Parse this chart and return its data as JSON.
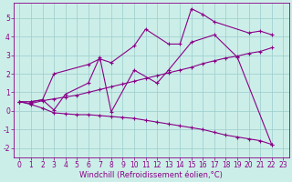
{
  "xlabel": "Windchill (Refroidissement éolien,°C)",
  "bg_color": "#cceee8",
  "line_color": "#880088",
  "grid_color": "#99cccc",
  "xlim": [
    -0.5,
    23.5
  ],
  "ylim": [
    -2.5,
    5.8
  ],
  "xticks": [
    0,
    1,
    2,
    3,
    4,
    5,
    6,
    7,
    8,
    9,
    10,
    11,
    12,
    13,
    14,
    15,
    16,
    17,
    18,
    19,
    20,
    21,
    22,
    23
  ],
  "yticks": [
    -2,
    -1,
    0,
    1,
    2,
    3,
    4,
    5
  ],
  "series1_x": [
    1,
    2,
    3,
    6,
    7,
    8,
    10,
    11,
    13,
    14,
    15,
    16,
    17,
    20,
    21,
    22
  ],
  "series1_y": [
    0.5,
    0.6,
    2.0,
    2.5,
    2.8,
    2.6,
    3.5,
    4.4,
    3.6,
    3.6,
    5.5,
    5.2,
    4.8,
    4.2,
    4.3,
    4.1
  ],
  "series2_x": [
    0,
    1,
    2,
    3,
    4,
    6,
    7,
    8,
    10,
    12,
    13,
    15,
    17,
    19,
    22
  ],
  "series2_y": [
    0.5,
    0.5,
    0.6,
    0.05,
    0.9,
    1.5,
    2.9,
    -0.05,
    2.2,
    1.5,
    2.2,
    3.7,
    4.1,
    2.9,
    -1.8
  ],
  "series3_x": [
    0,
    1,
    2,
    3,
    4,
    5,
    6,
    7,
    8,
    9,
    10,
    11,
    12,
    13,
    14,
    15,
    16,
    17,
    18,
    19,
    20,
    21,
    22
  ],
  "series3_y": [
    0.5,
    0.4,
    0.55,
    0.65,
    0.75,
    0.85,
    1.0,
    1.15,
    1.3,
    1.45,
    1.6,
    1.75,
    1.9,
    2.05,
    2.2,
    2.35,
    2.55,
    2.7,
    2.85,
    2.95,
    3.1,
    3.2,
    3.4
  ],
  "series4_x": [
    0,
    1,
    2,
    3,
    4,
    5,
    6,
    7,
    8,
    9,
    10,
    11,
    12,
    13,
    14,
    15,
    16,
    17,
    18,
    19,
    20,
    21,
    22
  ],
  "series4_y": [
    0.5,
    0.35,
    0.15,
    -0.1,
    -0.15,
    -0.2,
    -0.2,
    -0.25,
    -0.3,
    -0.35,
    -0.4,
    -0.5,
    -0.6,
    -0.7,
    -0.8,
    -0.9,
    -1.0,
    -1.15,
    -1.3,
    -1.4,
    -1.5,
    -1.6,
    -1.8
  ],
  "xlabel_fontsize": 6,
  "tick_fontsize": 5.5
}
